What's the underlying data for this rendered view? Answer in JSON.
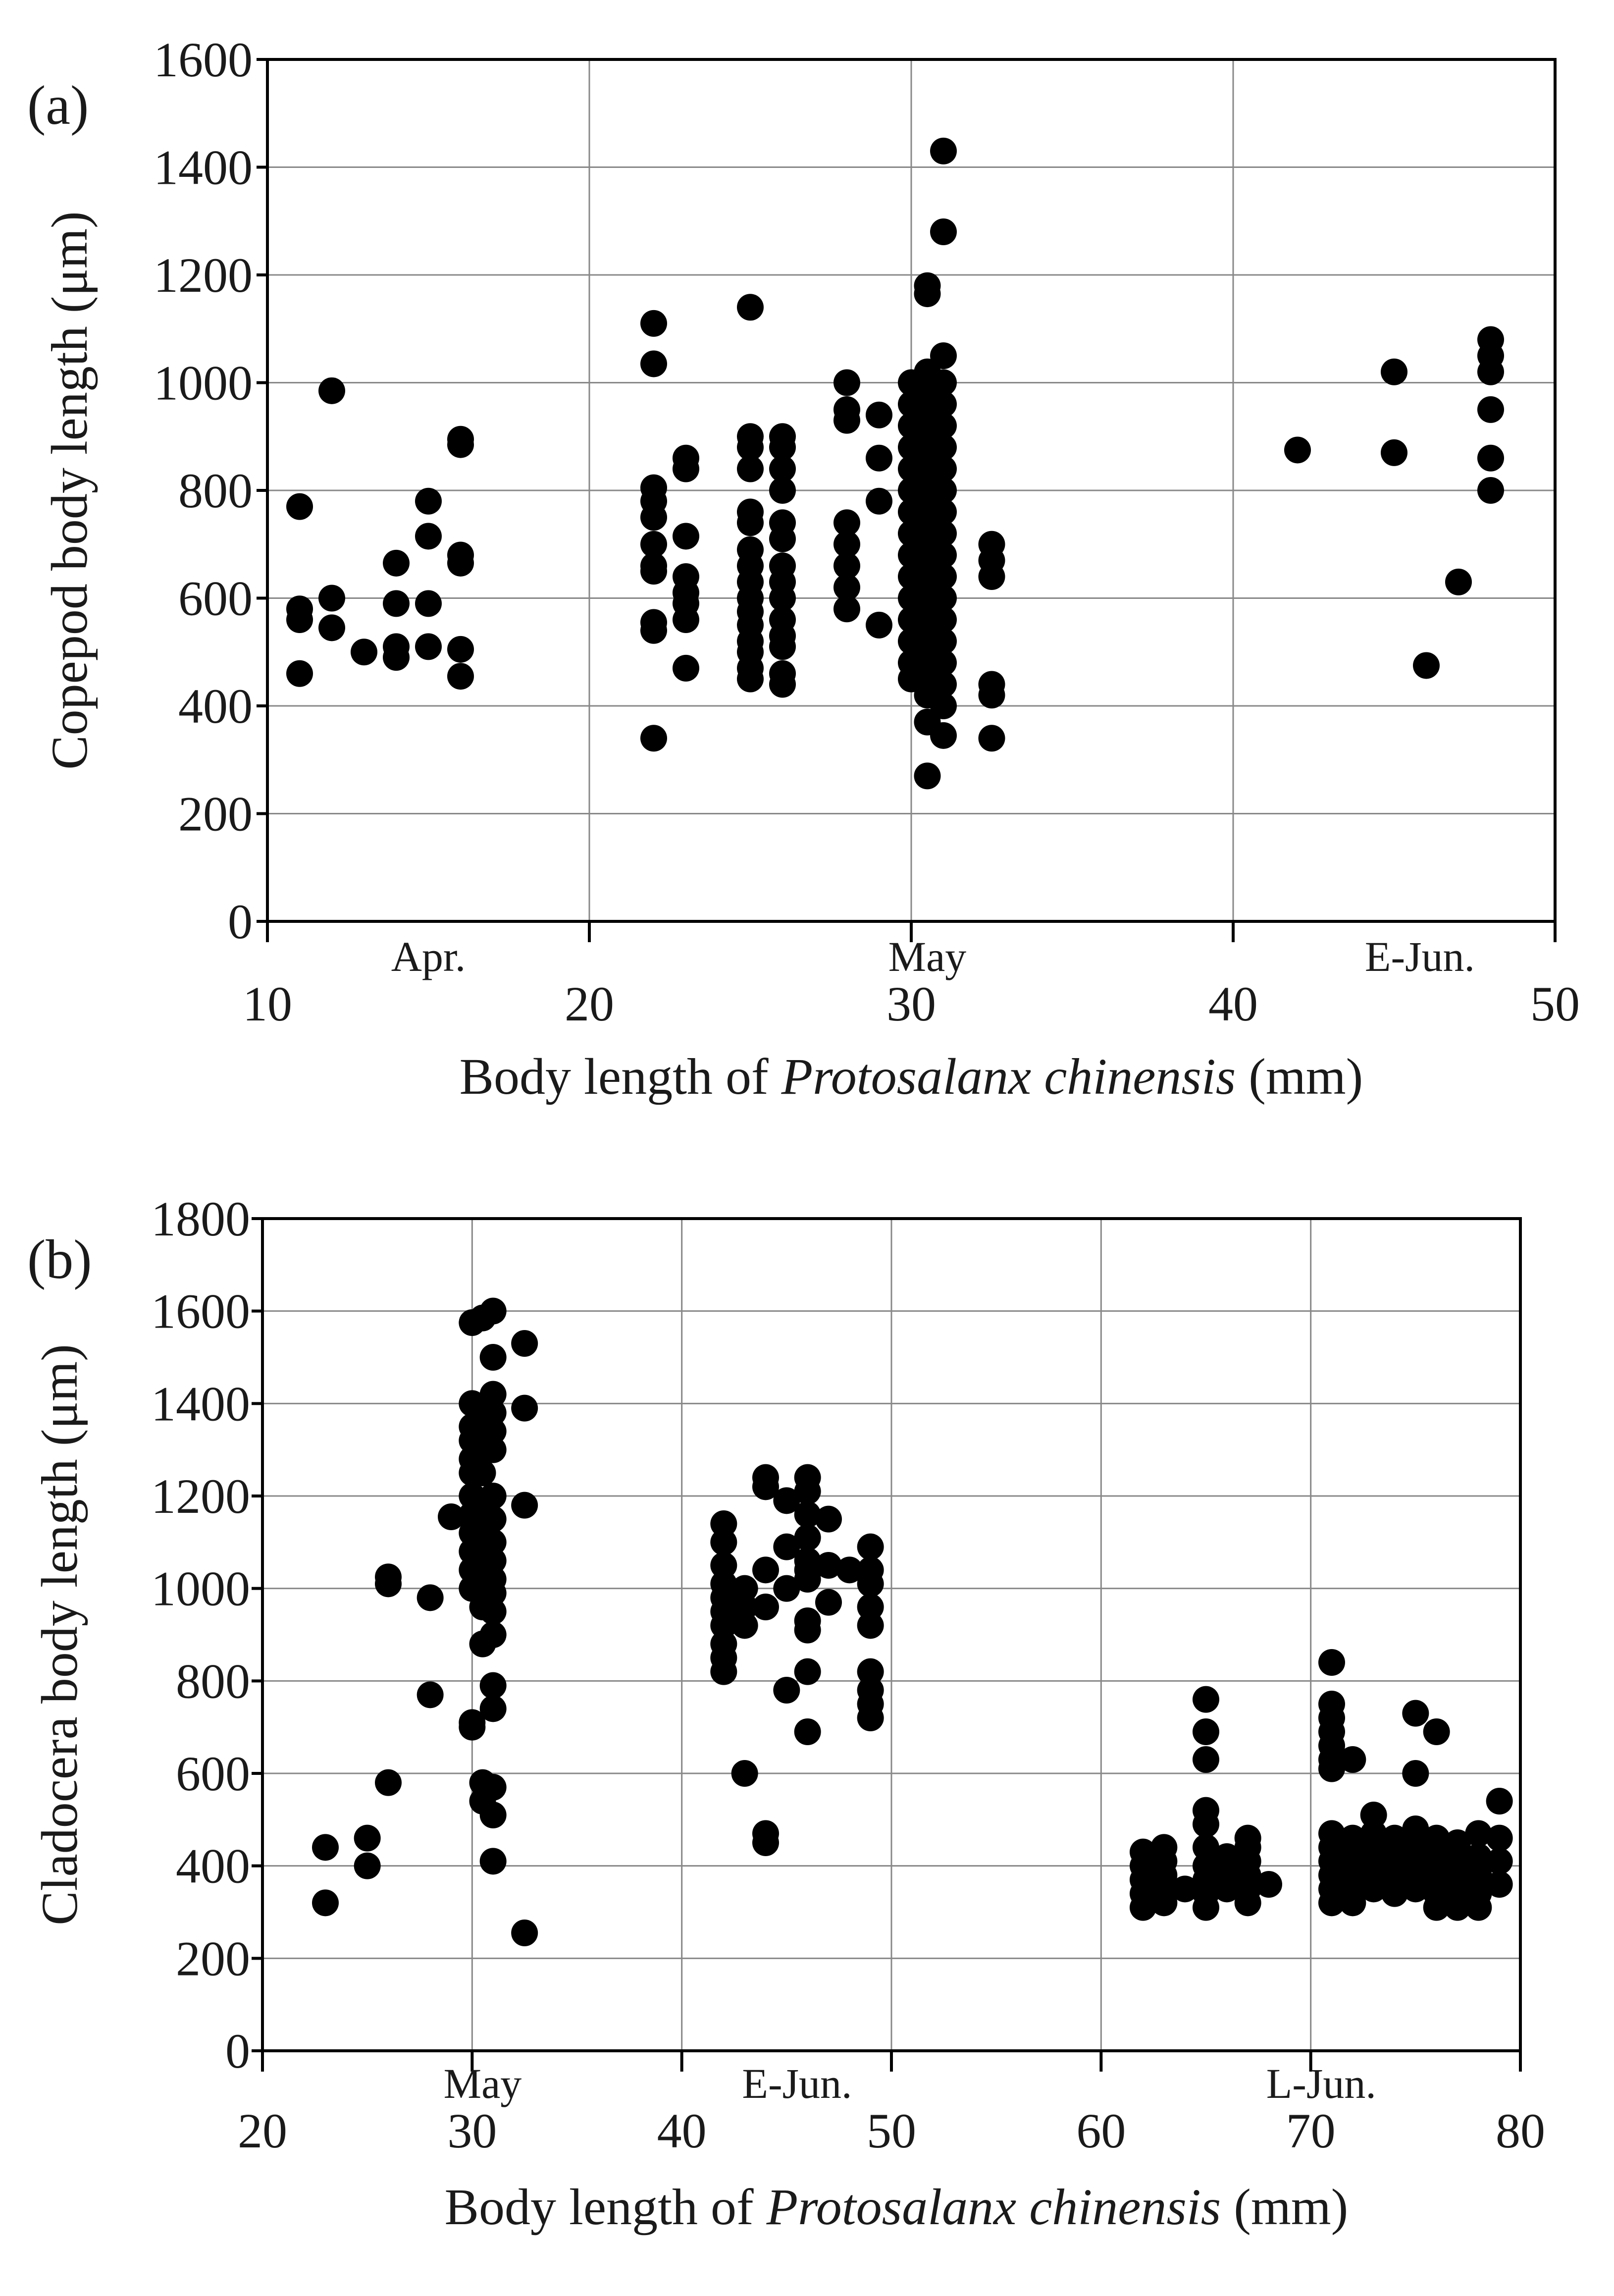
{
  "chart_data": [
    {
      "panel": "(a)",
      "type": "scatter",
      "xlabel_prefix": "Body length of ",
      "xlabel_species": "Protosalanx chinensis",
      "xlabel_suffix": " (mm)",
      "ylabel": "Copepod body length (μm)",
      "xlim": [
        10,
        50
      ],
      "ylim": [
        0,
        1600
      ],
      "xticks": [
        10,
        20,
        30,
        40,
        50
      ],
      "yticks": [
        0,
        200,
        400,
        600,
        800,
        1000,
        1200,
        1400,
        1600
      ],
      "grid": true,
      "month_labels": [
        {
          "text": "Apr.",
          "x": 15
        },
        {
          "text": "May",
          "x": 30.5
        },
        {
          "text": "E-Jun.",
          "x": 45.8
        }
      ],
      "points": [
        [
          11,
          770
        ],
        [
          11,
          580
        ],
        [
          11,
          560
        ],
        [
          11,
          460
        ],
        [
          12,
          985
        ],
        [
          12,
          600
        ],
        [
          12,
          545
        ],
        [
          13,
          500
        ],
        [
          14,
          665
        ],
        [
          14,
          590
        ],
        [
          14,
          510
        ],
        [
          14,
          490
        ],
        [
          15,
          780
        ],
        [
          15,
          715
        ],
        [
          15,
          590
        ],
        [
          15,
          510
        ],
        [
          16,
          895
        ],
        [
          16,
          885
        ],
        [
          16,
          680
        ],
        [
          16,
          665
        ],
        [
          16,
          505
        ],
        [
          16,
          455
        ],
        [
          22,
          1110
        ],
        [
          22,
          1035
        ],
        [
          22,
          805
        ],
        [
          22,
          780
        ],
        [
          22,
          750
        ],
        [
          22,
          700
        ],
        [
          22,
          660
        ],
        [
          22,
          650
        ],
        [
          22,
          555
        ],
        [
          22,
          540
        ],
        [
          22,
          340
        ],
        [
          23,
          860
        ],
        [
          23,
          840
        ],
        [
          23,
          715
        ],
        [
          23,
          640
        ],
        [
          23,
          610
        ],
        [
          23,
          590
        ],
        [
          23,
          560
        ],
        [
          23,
          470
        ],
        [
          25,
          1140
        ],
        [
          25,
          900
        ],
        [
          25,
          880
        ],
        [
          25,
          840
        ],
        [
          25,
          760
        ],
        [
          25,
          740
        ],
        [
          25,
          690
        ],
        [
          25,
          660
        ],
        [
          25,
          630
        ],
        [
          25,
          600
        ],
        [
          25,
          575
        ],
        [
          25,
          550
        ],
        [
          25,
          520
        ],
        [
          25,
          500
        ],
        [
          25,
          470
        ],
        [
          25,
          450
        ],
        [
          26,
          900
        ],
        [
          26,
          880
        ],
        [
          26,
          840
        ],
        [
          26,
          800
        ],
        [
          26,
          740
        ],
        [
          26,
          710
        ],
        [
          26,
          660
        ],
        [
          26,
          630
        ],
        [
          26,
          600
        ],
        [
          26,
          560
        ],
        [
          26,
          530
        ],
        [
          26,
          510
        ],
        [
          26,
          460
        ],
        [
          26,
          440
        ],
        [
          28,
          1000
        ],
        [
          28,
          950
        ],
        [
          28,
          930
        ],
        [
          28,
          740
        ],
        [
          28,
          700
        ],
        [
          28,
          660
        ],
        [
          28,
          620
        ],
        [
          28,
          580
        ],
        [
          29,
          940
        ],
        [
          29,
          860
        ],
        [
          29,
          780
        ],
        [
          29,
          550
        ],
        [
          30,
          1000
        ],
        [
          30,
          960
        ],
        [
          30,
          920
        ],
        [
          30,
          880
        ],
        [
          30,
          840
        ],
        [
          30,
          800
        ],
        [
          30,
          760
        ],
        [
          30,
          720
        ],
        [
          30,
          680
        ],
        [
          30,
          640
        ],
        [
          30,
          600
        ],
        [
          30,
          560
        ],
        [
          30,
          520
        ],
        [
          30,
          480
        ],
        [
          30,
          450
        ],
        [
          30.5,
          1020
        ],
        [
          30.5,
          980
        ],
        [
          30.5,
          940
        ],
        [
          30.5,
          900
        ],
        [
          30.5,
          860
        ],
        [
          30.5,
          820
        ],
        [
          30.5,
          780
        ],
        [
          30.5,
          740
        ],
        [
          30.5,
          700
        ],
        [
          30.5,
          660
        ],
        [
          30.5,
          620
        ],
        [
          30.5,
          580
        ],
        [
          30.5,
          540
        ],
        [
          30.5,
          500
        ],
        [
          30.5,
          460
        ],
        [
          30.5,
          420
        ],
        [
          30.5,
          370
        ],
        [
          30.5,
          270
        ],
        [
          30.5,
          1180
        ],
        [
          30.5,
          1165
        ],
        [
          31,
          1430
        ],
        [
          31,
          1280
        ],
        [
          31,
          1050
        ],
        [
          31,
          1000
        ],
        [
          31,
          960
        ],
        [
          31,
          920
        ],
        [
          31,
          880
        ],
        [
          31,
          840
        ],
        [
          31,
          800
        ],
        [
          31,
          760
        ],
        [
          31,
          720
        ],
        [
          31,
          680
        ],
        [
          31,
          640
        ],
        [
          31,
          600
        ],
        [
          31,
          560
        ],
        [
          31,
          520
        ],
        [
          31,
          480
        ],
        [
          31,
          440
        ],
        [
          31,
          400
        ],
        [
          31,
          345
        ],
        [
          32.5,
          700
        ],
        [
          32.5,
          670
        ],
        [
          32.5,
          640
        ],
        [
          32.5,
          440
        ],
        [
          32.5,
          420
        ],
        [
          32.5,
          340
        ],
        [
          42,
          875
        ],
        [
          45,
          1020
        ],
        [
          45,
          870
        ],
        [
          46,
          475
        ],
        [
          47,
          630
        ],
        [
          48,
          1080
        ],
        [
          48,
          1050
        ],
        [
          48,
          1020
        ],
        [
          48,
          950
        ],
        [
          48,
          860
        ],
        [
          48,
          800
        ]
      ]
    },
    {
      "panel": "(b)",
      "type": "scatter",
      "xlabel_prefix": "Body length of ",
      "xlabel_species": "Protosalanx chinensis",
      "xlabel_suffix": " (mm)",
      "ylabel": "Cladocera body length (μm)",
      "xlim": [
        20,
        80
      ],
      "ylim": [
        0,
        1800
      ],
      "xticks": [
        20,
        30,
        40,
        50,
        60,
        70,
        80
      ],
      "yticks": [
        0,
        200,
        400,
        600,
        800,
        1000,
        1200,
        1400,
        1600,
        1800
      ],
      "grid": true,
      "month_labels": [
        {
          "text": "May",
          "x": 30.5
        },
        {
          "text": "E-Jun.",
          "x": 45.5
        },
        {
          "text": "L-Jun.",
          "x": 70.5
        }
      ],
      "points": [
        [
          23,
          440
        ],
        [
          23,
          320
        ],
        [
          25,
          460
        ],
        [
          25,
          400
        ],
        [
          26,
          1025
        ],
        [
          26,
          1010
        ],
        [
          26,
          580
        ],
        [
          28,
          980
        ],
        [
          28,
          770
        ],
        [
          29,
          1155
        ],
        [
          30,
          1575
        ],
        [
          30,
          1400
        ],
        [
          30,
          1350
        ],
        [
          30,
          1320
        ],
        [
          30,
          1280
        ],
        [
          30,
          1250
        ],
        [
          30,
          1200
        ],
        [
          30,
          1160
        ],
        [
          30,
          1120
        ],
        [
          30,
          1080
        ],
        [
          30,
          1040
        ],
        [
          30,
          1000
        ],
        [
          30,
          710
        ],
        [
          30,
          700
        ],
        [
          30.5,
          1585
        ],
        [
          30.5,
          1380
        ],
        [
          30.5,
          1300
        ],
        [
          30.5,
          1250
        ],
        [
          30.5,
          1180
        ],
        [
          30.5,
          1150
        ],
        [
          30.5,
          1100
        ],
        [
          30.5,
          1060
        ],
        [
          30.5,
          1000
        ],
        [
          30.5,
          960
        ],
        [
          30.5,
          880
        ],
        [
          30.5,
          580
        ],
        [
          30.5,
          540
        ],
        [
          31,
          1600
        ],
        [
          31,
          1500
        ],
        [
          31,
          1420
        ],
        [
          31,
          1380
        ],
        [
          31,
          1340
        ],
        [
          31,
          1300
        ],
        [
          31,
          1200
        ],
        [
          31,
          1150
        ],
        [
          31,
          1100
        ],
        [
          31,
          1060
        ],
        [
          31,
          1020
        ],
        [
          31,
          990
        ],
        [
          31,
          950
        ],
        [
          31,
          900
        ],
        [
          31,
          790
        ],
        [
          31,
          740
        ],
        [
          31,
          570
        ],
        [
          31,
          510
        ],
        [
          31,
          410
        ],
        [
          32.5,
          1530
        ],
        [
          32.5,
          1390
        ],
        [
          32.5,
          1180
        ],
        [
          32.5,
          255
        ],
        [
          42,
          1140
        ],
        [
          42,
          1100
        ],
        [
          42,
          1050
        ],
        [
          42,
          1010
        ],
        [
          42,
          980
        ],
        [
          42,
          950
        ],
        [
          42,
          920
        ],
        [
          42,
          880
        ],
        [
          42,
          850
        ],
        [
          42,
          820
        ],
        [
          43,
          1000
        ],
        [
          43,
          960
        ],
        [
          43,
          920
        ],
        [
          43,
          600
        ],
        [
          44,
          1240
        ],
        [
          44,
          1220
        ],
        [
          44,
          1040
        ],
        [
          44,
          960
        ],
        [
          44,
          470
        ],
        [
          44,
          450
        ],
        [
          45,
          1190
        ],
        [
          45,
          1090
        ],
        [
          45,
          1000
        ],
        [
          45,
          780
        ],
        [
          46,
          1240
        ],
        [
          46,
          1210
        ],
        [
          46,
          1160
        ],
        [
          46,
          1110
        ],
        [
          46,
          1060
        ],
        [
          46,
          1040
        ],
        [
          46,
          1020
        ],
        [
          46,
          930
        ],
        [
          46,
          910
        ],
        [
          46,
          820
        ],
        [
          46,
          690
        ],
        [
          47,
          1150
        ],
        [
          47,
          1050
        ],
        [
          47,
          970
        ],
        [
          48,
          1040
        ],
        [
          49,
          1090
        ],
        [
          49,
          1040
        ],
        [
          49,
          1010
        ],
        [
          49,
          960
        ],
        [
          49,
          920
        ],
        [
          49,
          820
        ],
        [
          49,
          780
        ],
        [
          49,
          750
        ],
        [
          49,
          720
        ],
        [
          62,
          430
        ],
        [
          62,
          400
        ],
        [
          62,
          370
        ],
        [
          62,
          340
        ],
        [
          62,
          310
        ],
        [
          63,
          440
        ],
        [
          63,
          410
        ],
        [
          63,
          380
        ],
        [
          63,
          350
        ],
        [
          63,
          320
        ],
        [
          64,
          350
        ],
        [
          65,
          760
        ],
        [
          65,
          690
        ],
        [
          65,
          630
        ],
        [
          65,
          520
        ],
        [
          65,
          490
        ],
        [
          65,
          440
        ],
        [
          65,
          400
        ],
        [
          65,
          370
        ],
        [
          65,
          340
        ],
        [
          65,
          310
        ],
        [
          66,
          420
        ],
        [
          66,
          380
        ],
        [
          66,
          350
        ],
        [
          67,
          460
        ],
        [
          67,
          440
        ],
        [
          67,
          410
        ],
        [
          67,
          380
        ],
        [
          67,
          350
        ],
        [
          67,
          320
        ],
        [
          68,
          360
        ],
        [
          71,
          840
        ],
        [
          71,
          750
        ],
        [
          71,
          720
        ],
        [
          71,
          690
        ],
        [
          71,
          660
        ],
        [
          71,
          630
        ],
        [
          71,
          610
        ],
        [
          71,
          470
        ],
        [
          71,
          440
        ],
        [
          71,
          410
        ],
        [
          71,
          380
        ],
        [
          71,
          350
        ],
        [
          71,
          320
        ],
        [
          72,
          630
        ],
        [
          72,
          460
        ],
        [
          72,
          420
        ],
        [
          72,
          380
        ],
        [
          72,
          350
        ],
        [
          72,
          320
        ],
        [
          73,
          510
        ],
        [
          73,
          470
        ],
        [
          73,
          440
        ],
        [
          73,
          410
        ],
        [
          73,
          380
        ],
        [
          73,
          350
        ],
        [
          74,
          460
        ],
        [
          74,
          420
        ],
        [
          74,
          380
        ],
        [
          74,
          340
        ],
        [
          75,
          730
        ],
        [
          75,
          600
        ],
        [
          75,
          480
        ],
        [
          75,
          440
        ],
        [
          75,
          410
        ],
        [
          75,
          380
        ],
        [
          75,
          350
        ],
        [
          76,
          690
        ],
        [
          76,
          460
        ],
        [
          76,
          420
        ],
        [
          76,
          380
        ],
        [
          76,
          340
        ],
        [
          76,
          310
        ],
        [
          77,
          450
        ],
        [
          77,
          410
        ],
        [
          77,
          370
        ],
        [
          77,
          330
        ],
        [
          77,
          310
        ],
        [
          78,
          470
        ],
        [
          78,
          420
        ],
        [
          78,
          380
        ],
        [
          78,
          340
        ],
        [
          78,
          310
        ],
        [
          79,
          540
        ],
        [
          79,
          460
        ],
        [
          79,
          410
        ],
        [
          79,
          360
        ]
      ]
    }
  ]
}
